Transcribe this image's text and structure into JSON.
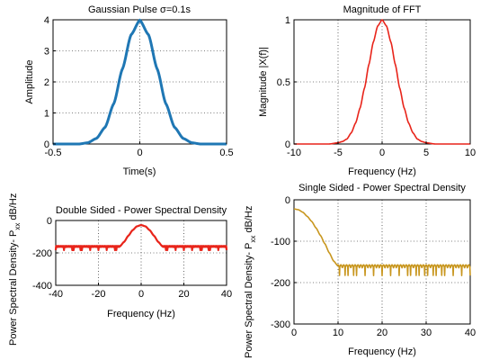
{
  "chart_data": [
    {
      "type": "line",
      "title": "Gaussian Pulse σ=0.1s",
      "xlabel": "Time(s)",
      "ylabel": "Amplitude",
      "xlim": [
        -0.5,
        0.5
      ],
      "ylim": [
        0,
        4
      ],
      "xticks": [
        "-0.5",
        "0",
        "0.5"
      ],
      "yticks": [
        "0",
        "1",
        "2",
        "3",
        "4"
      ],
      "grid": true,
      "series": [
        {
          "color": "#1f77b4",
          "x": [
            -0.5,
            -0.45,
            -0.4,
            -0.35,
            -0.3,
            -0.25,
            -0.2,
            -0.15,
            -0.1,
            -0.05,
            0,
            0.05,
            0.1,
            0.15,
            0.2,
            0.25,
            0.3,
            0.35,
            0.4,
            0.45,
            0.5
          ],
          "y": [
            0,
            0,
            0,
            0,
            0.04,
            0.18,
            0.54,
            1.3,
            2.42,
            3.52,
            3.99,
            3.52,
            2.42,
            1.3,
            0.54,
            0.18,
            0.04,
            0,
            0,
            0,
            0
          ]
        }
      ]
    },
    {
      "type": "line",
      "title": "Magnitude of FFT",
      "xlabel": "Frequency (Hz)",
      "ylabel": "Magnitude |X(f)|",
      "xlim": [
        -10,
        10
      ],
      "ylim": [
        0,
        1
      ],
      "xticks": [
        "-10",
        "-5",
        "0",
        "5",
        "10"
      ],
      "yticks": [
        "0",
        "0.5",
        "1"
      ],
      "grid": true,
      "series": [
        {
          "color": "#e8241a",
          "x": [
            -10,
            -6,
            -5,
            -4.5,
            -4,
            -3.5,
            -3,
            -2.5,
            -2,
            -1.5,
            -1,
            -0.5,
            0,
            0.5,
            1,
            1.5,
            2,
            2.5,
            3,
            3.5,
            4,
            4.5,
            5,
            6,
            10
          ],
          "y": [
            0,
            0,
            0.01,
            0.02,
            0.04,
            0.09,
            0.17,
            0.29,
            0.45,
            0.64,
            0.82,
            0.95,
            1,
            0.95,
            0.82,
            0.64,
            0.45,
            0.29,
            0.17,
            0.09,
            0.04,
            0.02,
            0.01,
            0,
            0
          ]
        }
      ]
    },
    {
      "type": "line",
      "title": "Double Sided - Power Spectral Density",
      "xlabel": "Frequency (Hz)",
      "ylabel": "Power Spectral Density- P",
      "ylabel_sub": "xx",
      "ylabel_unit": "dB/Hz",
      "xlim": [
        -40,
        40
      ],
      "ylim": [
        -400,
        0
      ],
      "xticks": [
        "-40",
        "-20",
        "0",
        "20",
        "40"
      ],
      "yticks": [
        "-400",
        "-200",
        "0"
      ],
      "grid": true,
      "series": [
        {
          "color": "#e8241a",
          "x": [
            -40,
            -12,
            -10,
            -8,
            -6,
            -4,
            -2,
            0,
            2,
            4,
            6,
            8,
            10,
            12,
            40
          ],
          "y": [
            -165,
            -165,
            -160,
            -132,
            -94,
            -60,
            -36,
            -28,
            -36,
            -60,
            -94,
            -132,
            -160,
            -165,
            -165
          ]
        }
      ]
    },
    {
      "type": "line",
      "title": "Single Sided - Power Spectral Density",
      "xlabel": "Frequency (Hz)",
      "ylabel": "Power Spectral Density- P",
      "ylabel_sub": "xx",
      "ylabel_unit": "dB/Hz",
      "xlim": [
        0,
        40
      ],
      "ylim": [
        -300,
        0
      ],
      "xticks": [
        "0",
        "10",
        "20",
        "30",
        "40"
      ],
      "yticks": [
        "-300",
        "-200",
        "-100",
        "0"
      ],
      "grid": true,
      "series": [
        {
          "color": "#c8961e",
          "x": [
            0,
            1,
            2,
            3,
            4,
            5,
            6,
            7,
            8,
            9,
            10,
            12,
            40
          ],
          "y": [
            -22,
            -24,
            -30,
            -40,
            -52,
            -68,
            -86,
            -106,
            -128,
            -148,
            -160,
            -165,
            -165
          ]
        }
      ]
    }
  ]
}
